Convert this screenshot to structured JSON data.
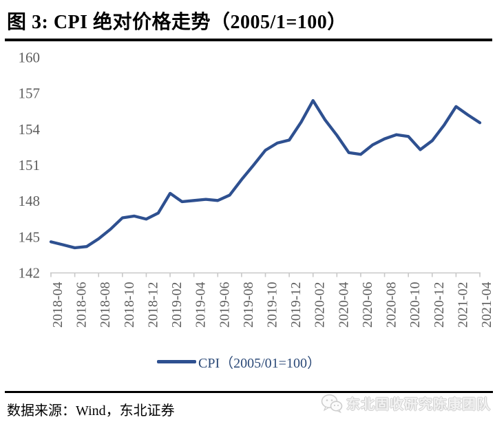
{
  "header": {
    "title": "图 3: CPI 绝对价格走势（2005/1=100）"
  },
  "chart_data": {
    "type": "line",
    "title": "图 3: CPI 绝对价格走势（2005/1=100）",
    "xlabel": "",
    "ylabel": "",
    "grid": false,
    "legend_position": "bottom",
    "ylim": [
      142,
      160
    ],
    "y_ticks": [
      142,
      145,
      148,
      151,
      154,
      157,
      160
    ],
    "x": [
      "2018-04",
      "2018-05",
      "2018-06",
      "2018-07",
      "2018-08",
      "2018-09",
      "2018-10",
      "2018-11",
      "2018-12",
      "2019-01",
      "2019-02",
      "2019-03",
      "2019-04",
      "2019-05",
      "2019-06",
      "2019-07",
      "2019-08",
      "2019-09",
      "2019-10",
      "2019-11",
      "2019-12",
      "2020-01",
      "2020-02",
      "2020-03",
      "2020-04",
      "2020-05",
      "2020-06",
      "2020-07",
      "2020-08",
      "2020-09",
      "2020-10",
      "2020-11",
      "2020-12",
      "2021-01",
      "2021-02",
      "2021-03",
      "2021-04"
    ],
    "x_tick_labels": [
      "2018-04",
      "2018-06",
      "2018-08",
      "2018-10",
      "2018-12",
      "2019-02",
      "2019-04",
      "2019-06",
      "2019-08",
      "2019-10",
      "2019-12",
      "2020-02",
      "2020-04",
      "2020-06",
      "2020-08",
      "2020-10",
      "2020-12",
      "2021-02",
      "2021-04"
    ],
    "series": [
      {
        "name": "CPI（2005/01=100）",
        "color": "#2E5090",
        "values": [
          144.6,
          144.35,
          144.1,
          144.2,
          144.85,
          145.65,
          146.6,
          146.75,
          146.5,
          147.0,
          148.65,
          147.95,
          148.05,
          148.15,
          148.05,
          148.5,
          149.8,
          151.0,
          152.25,
          152.85,
          153.1,
          154.6,
          156.4,
          154.8,
          153.5,
          152.05,
          151.9,
          152.7,
          153.2,
          153.55,
          153.4,
          152.3,
          153.05,
          154.35,
          155.9,
          155.2,
          154.55
        ]
      }
    ],
    "axis_color": "#C8C8C8",
    "tick_label_color": "#5E5E5E"
  },
  "legend": {
    "label": "CPI（2005/01=100）"
  },
  "footer": {
    "source": "数据来源：Wind，东北证券",
    "watermark": "东北固收研究陈康团队"
  }
}
